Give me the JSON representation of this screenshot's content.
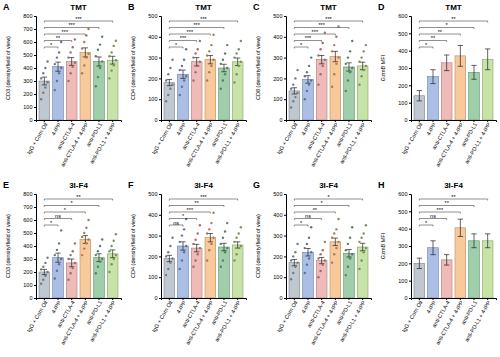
{
  "chart_data": [
    {
      "type": "bar",
      "panel": "A",
      "title": "TMT",
      "y_label": "CD3 (density/field of view)",
      "categories": [
        "IgG + Corn Oil",
        "4-IPP",
        "anti-CTLA-4",
        "anti-CTLA-4 + 4-IPP",
        "anti-PD-L1",
        "anti-PD-L1 + 4-IPP"
      ],
      "values": [
        300,
        410,
        450,
        520,
        450,
        460
      ],
      "errors": [
        30,
        35,
        30,
        35,
        35,
        30
      ],
      "points": [
        [
          160,
          210,
          250,
          290,
          320,
          360,
          400,
          450
        ],
        [
          230,
          300,
          360,
          400,
          430,
          480,
          520,
          600
        ],
        [
          300,
          360,
          410,
          440,
          480,
          520,
          560,
          620
        ],
        [
          360,
          420,
          480,
          510,
          550,
          600,
          650,
          700
        ],
        [
          260,
          330,
          400,
          450,
          490,
          540,
          580,
          640
        ],
        [
          320,
          380,
          420,
          460,
          490,
          520,
          570,
          610
        ]
      ],
      "colors": [
        "#a9b4c2",
        "#8fa8dc",
        "#e9a3a0",
        "#f5b77a",
        "#7fbf8e",
        "#b5d98a"
      ],
      "ylim": [
        0,
        800
      ],
      "yticks": [
        0,
        100,
        200,
        300,
        400,
        500,
        600,
        700,
        800
      ],
      "annotations": [
        {
          "from": 0,
          "to": 1,
          "text": "*"
        },
        {
          "from": 0,
          "to": 2,
          "text": "**"
        },
        {
          "from": 0,
          "to": 3,
          "text": "***"
        },
        {
          "from": 0,
          "to": 4,
          "text": "***"
        },
        {
          "from": 0,
          "to": 5,
          "text": "***"
        }
      ]
    },
    {
      "type": "bar",
      "panel": "B",
      "title": "TMT",
      "y_label": "CD4 (density/field of view)",
      "categories": [
        "IgG + Corn Oil",
        "4-IPP",
        "anti-CTLA-4",
        "anti-CTLA-4 + 4-IPP",
        "anti-PD-L1",
        "anti-PD-L1 + 4-IPP"
      ],
      "values": [
        180,
        220,
        280,
        290,
        250,
        280
      ],
      "errors": [
        15,
        20,
        20,
        20,
        18,
        18
      ],
      "points": [
        [
          90,
          120,
          150,
          170,
          190,
          220,
          250,
          290
        ],
        [
          120,
          160,
          190,
          210,
          240,
          260,
          290,
          340
        ],
        [
          190,
          230,
          260,
          280,
          300,
          320,
          340,
          380
        ],
        [
          190,
          230,
          260,
          290,
          310,
          330,
          360,
          410
        ],
        [
          150,
          190,
          220,
          250,
          270,
          290,
          320,
          360
        ],
        [
          180,
          220,
          260,
          280,
          300,
          320,
          340,
          380
        ]
      ],
      "colors": [
        "#a9b4c2",
        "#8fa8dc",
        "#e9a3a0",
        "#f5b77a",
        "#7fbf8e",
        "#b5d98a"
      ],
      "ylim": [
        0,
        500
      ],
      "yticks": [
        0,
        100,
        200,
        300,
        400,
        500
      ],
      "annotations": [
        {
          "from": 0,
          "to": 1,
          "text": "*"
        },
        {
          "from": 0,
          "to": 2,
          "text": "***"
        },
        {
          "from": 0,
          "to": 3,
          "text": "***"
        },
        {
          "from": 0,
          "to": 4,
          "text": "***"
        },
        {
          "from": 0,
          "to": 5,
          "text": "***"
        }
      ]
    },
    {
      "type": "bar",
      "panel": "C",
      "title": "TMT",
      "y_label": "CD8 (density/field of view)",
      "categories": [
        "IgG + Corn Oil",
        "4-IPP",
        "anti-CTLA-4",
        "anti-CTLA-4 + 4-IPP",
        "anti-PD-L1",
        "anti-PD-L1 + 4-IPP"
      ],
      "values": [
        140,
        195,
        290,
        305,
        255,
        260
      ],
      "errors": [
        15,
        18,
        20,
        25,
        20,
        18
      ],
      "points": [
        [
          60,
          90,
          110,
          130,
          150,
          170,
          200,
          240
        ],
        [
          100,
          140,
          170,
          190,
          210,
          230,
          260,
          300
        ],
        [
          170,
          220,
          260,
          290,
          310,
          340,
          370,
          420
        ],
        [
          160,
          220,
          270,
          300,
          330,
          360,
          400,
          450
        ],
        [
          140,
          190,
          230,
          250,
          270,
          300,
          330,
          380
        ],
        [
          170,
          210,
          240,
          260,
          280,
          300,
          330,
          360
        ]
      ],
      "colors": [
        "#a9b4c2",
        "#8fa8dc",
        "#e9a3a0",
        "#f5b77a",
        "#7fbf8e",
        "#b5d98a"
      ],
      "ylim": [
        0,
        500
      ],
      "yticks": [
        0,
        100,
        200,
        300,
        400,
        500
      ],
      "annotations": [
        {
          "from": 0,
          "to": 1,
          "text": "*"
        },
        {
          "from": 0,
          "to": 2,
          "text": "***"
        },
        {
          "from": 0,
          "to": 3,
          "text": "***"
        },
        {
          "from": 0,
          "to": 4,
          "text": "***"
        },
        {
          "from": 0,
          "to": 5,
          "text": "***"
        }
      ]
    },
    {
      "type": "bar",
      "panel": "D",
      "title": "TMT",
      "y_label": "GzmB MFI",
      "categories": [
        "IgG + Corn Oil",
        "4-IPP",
        "anti-CTLA-4",
        "anti-CTLA-4 + 4-IPP",
        "anti-PD-L1",
        "anti-PD-L1 + 4-IPP"
      ],
      "values": [
        140,
        250,
        330,
        370,
        275,
        350
      ],
      "errors": [
        30,
        40,
        45,
        60,
        40,
        60
      ],
      "colors": [
        "#a9b4c2",
        "#8fa8dc",
        "#e9a3a0",
        "#f5b77a",
        "#7fbf8e",
        "#b5d98a"
      ],
      "ylim": [
        0,
        600
      ],
      "yticks": [
        0,
        100,
        200,
        300,
        400,
        500,
        600
      ],
      "annotations": [
        {
          "from": 0,
          "to": 1,
          "text": "*"
        },
        {
          "from": 0,
          "to": 2,
          "text": "**"
        },
        {
          "from": 0,
          "to": 3,
          "text": "**"
        },
        {
          "from": 0,
          "to": 4,
          "text": "*"
        },
        {
          "from": 0,
          "to": 5,
          "text": "**"
        }
      ]
    },
    {
      "type": "bar",
      "panel": "E",
      "title": "3I-F4",
      "y_label": "CD3 (density/field of view)",
      "categories": [
        "IgG + Corn Oil",
        "4-IPP",
        "anti-CTLA-4",
        "anti-CTLA-4 + 4-IPP",
        "anti-PD-L1",
        "anti-PD-L1 + 4-IPP"
      ],
      "values": [
        200,
        310,
        270,
        450,
        310,
        340
      ],
      "errors": [
        20,
        35,
        30,
        30,
        30,
        30
      ],
      "points": [
        [
          110,
          140,
          170,
          200,
          220,
          240,
          270,
          310
        ],
        [
          150,
          210,
          260,
          300,
          330,
          370,
          420,
          520
        ],
        [
          140,
          190,
          230,
          270,
          300,
          330,
          360,
          420
        ],
        [
          330,
          380,
          420,
          450,
          470,
          500,
          540,
          600
        ],
        [
          190,
          240,
          280,
          300,
          330,
          360,
          400,
          450
        ],
        [
          200,
          260,
          300,
          330,
          360,
          400,
          440,
          490
        ]
      ],
      "colors": [
        "#a9b4c2",
        "#8fa8dc",
        "#e9a3a0",
        "#f5b77a",
        "#7fbf8e",
        "#b5d98a"
      ],
      "ylim": [
        0,
        800
      ],
      "yticks": [
        0,
        100,
        200,
        300,
        400,
        500,
        600,
        700,
        800
      ],
      "annotations": [
        {
          "from": 0,
          "to": 1,
          "text": "*"
        },
        {
          "from": 0,
          "to": 2,
          "text": "ns"
        },
        {
          "from": 0,
          "to": 3,
          "text": "*"
        },
        {
          "from": 0,
          "to": 4,
          "text": "*"
        },
        {
          "from": 0,
          "to": 5,
          "text": "**"
        }
      ]
    },
    {
      "type": "bar",
      "panel": "F",
      "title": "3I-F4",
      "y_label": "CD4 (density/field of view)",
      "categories": [
        "IgG + Corn Oil",
        "4-IPP",
        "anti-CTLA-4",
        "anti-CTLA-4 + 4-IPP",
        "anti-PD-L1",
        "anti-PD-L1 + 4-IPP"
      ],
      "values": [
        190,
        250,
        240,
        290,
        245,
        255
      ],
      "errors": [
        15,
        20,
        18,
        20,
        18,
        15
      ],
      "points": [
        [
          110,
          140,
          170,
          190,
          200,
          220,
          250,
          290
        ],
        [
          140,
          180,
          220,
          250,
          270,
          300,
          330,
          380
        ],
        [
          150,
          180,
          210,
          240,
          260,
          280,
          310,
          350
        ],
        [
          180,
          230,
          260,
          290,
          310,
          330,
          360,
          410
        ],
        [
          150,
          180,
          220,
          240,
          260,
          290,
          320,
          360
        ],
        [
          180,
          210,
          240,
          250,
          270,
          290,
          310,
          340
        ]
      ],
      "colors": [
        "#a9b4c2",
        "#8fa8dc",
        "#e9a3a0",
        "#f5b77a",
        "#7fbf8e",
        "#b5d98a"
      ],
      "ylim": [
        0,
        500
      ],
      "yticks": [
        0,
        100,
        200,
        300,
        400,
        500
      ],
      "annotations": [
        {
          "from": 0,
          "to": 1,
          "text": "ns"
        },
        {
          "from": 0,
          "to": 2,
          "text": "*"
        },
        {
          "from": 0,
          "to": 3,
          "text": "***"
        },
        {
          "from": 0,
          "to": 4,
          "text": "**"
        },
        {
          "from": 0,
          "to": 5,
          "text": "***"
        }
      ]
    },
    {
      "type": "bar",
      "panel": "G",
      "title": "3I-F4",
      "y_label": "CD8 (density/field of view)",
      "categories": [
        "IgG + Corn Oil",
        "4-IPP",
        "anti-CTLA-4",
        "anti-CTLA-4 + 4-IPP",
        "anti-PD-L1",
        "anti-PD-L1 + 4-IPP"
      ],
      "values": [
        170,
        220,
        180,
        270,
        215,
        245
      ],
      "errors": [
        15,
        18,
        15,
        18,
        18,
        18
      ],
      "points": [
        [
          90,
          120,
          150,
          170,
          180,
          200,
          220,
          260
        ],
        [
          120,
          160,
          190,
          220,
          240,
          260,
          290,
          340
        ],
        [
          100,
          130,
          160,
          180,
          190,
          210,
          230,
          270
        ],
        [
          170,
          210,
          240,
          270,
          290,
          310,
          330,
          380
        ],
        [
          110,
          150,
          190,
          210,
          230,
          260,
          290,
          340
        ],
        [
          140,
          180,
          220,
          240,
          270,
          290,
          310,
          350
        ]
      ],
      "colors": [
        "#a9b4c2",
        "#8fa8dc",
        "#e9a3a0",
        "#f5b77a",
        "#7fbf8e",
        "#b5d98a"
      ],
      "ylim": [
        0,
        500
      ],
      "yticks": [
        0,
        100,
        200,
        300,
        400,
        500
      ],
      "annotations": [
        {
          "from": 0,
          "to": 1,
          "text": "*"
        },
        {
          "from": 0,
          "to": 2,
          "text": "ns"
        },
        {
          "from": 0,
          "to": 3,
          "text": "**"
        },
        {
          "from": 0,
          "to": 4,
          "text": "*"
        },
        {
          "from": 0,
          "to": 5,
          "text": "*"
        }
      ]
    },
    {
      "type": "bar",
      "panel": "H",
      "title": "3I-F4",
      "y_label": "GzmB MFI",
      "categories": [
        "IgG + Corn Oil",
        "4-IPP",
        "anti-CTLA-4",
        "anti-CTLA-4 + 4-IPP",
        "anti-PD-L1",
        "anti-PD-L1 + 4-IPP"
      ],
      "values": [
        200,
        290,
        220,
        405,
        330,
        330
      ],
      "errors": [
        30,
        40,
        30,
        50,
        40,
        40
      ],
      "colors": [
        "#a9b4c2",
        "#8fa8dc",
        "#e9a3a0",
        "#f5b77a",
        "#7fbf8e",
        "#b5d98a"
      ],
      "ylim": [
        0,
        600
      ],
      "yticks": [
        0,
        100,
        200,
        300,
        400,
        500,
        600
      ],
      "annotations": [
        {
          "from": 0,
          "to": 1,
          "text": "*"
        },
        {
          "from": 0,
          "to": 2,
          "text": "ns"
        },
        {
          "from": 0,
          "to": 3,
          "text": "***"
        },
        {
          "from": 0,
          "to": 4,
          "text": "**"
        },
        {
          "from": 0,
          "to": 5,
          "text": "**"
        }
      ]
    }
  ]
}
